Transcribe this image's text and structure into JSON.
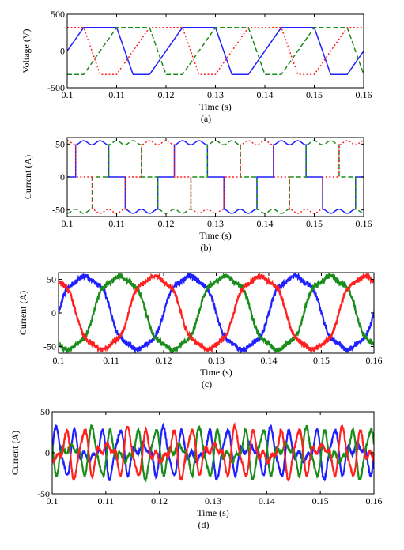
{
  "chart_data": [
    {
      "type": "line",
      "panel_label": "(a)",
      "xlabel": "Time (s)",
      "ylabel": "Voltage (V)",
      "xlim": [
        0.1,
        0.16
      ],
      "ylim": [
        -500,
        500
      ],
      "xticks": [
        "0.1",
        "0.11",
        "0.12",
        "0.13",
        "0.14",
        "0.15",
        "0.16"
      ],
      "yticks": [
        "-500",
        "0",
        "500"
      ],
      "ytick_values": [
        -500,
        0,
        500
      ],
      "waveform": "trapezoidal three-phase voltage",
      "amplitude": 320,
      "frequency_hz": 50,
      "series": [
        {
          "color": "#1f1fff",
          "dash": "solid",
          "phase_deg": 0
        },
        {
          "color": "#1a8c1a",
          "dash": "dash",
          "phase_deg": -120
        },
        {
          "color": "#ff2020",
          "dash": "dot",
          "phase_deg": 120
        }
      ]
    },
    {
      "type": "line",
      "panel_label": "(b)",
      "xlabel": "Time (s)",
      "ylabel": "Current (A)",
      "xlim": [
        0.1,
        0.16
      ],
      "ylim": [
        -60,
        60
      ],
      "xticks": [
        "0.1",
        "0.11",
        "0.12",
        "0.13",
        "0.14",
        "0.15",
        "0.16"
      ],
      "yticks": [
        "-50",
        "0",
        "50"
      ],
      "ytick_values": [
        -50,
        0,
        50
      ],
      "waveform": "quasi-square 120-degree conduction current",
      "amplitude": 52,
      "frequency_hz": 50,
      "series": [
        {
          "color": "#1f1fff",
          "dash": "solid",
          "phase_deg": 0
        },
        {
          "color": "#1a8c1a",
          "dash": "dash",
          "phase_deg": -120
        },
        {
          "color": "#ff2020",
          "dash": "dot",
          "phase_deg": 120
        }
      ]
    },
    {
      "type": "line",
      "panel_label": "(c)",
      "xlabel": "Time (s)",
      "ylabel": "Current (A)",
      "xlim": [
        0.1,
        0.16
      ],
      "ylim": [
        -60,
        60
      ],
      "xticks": [
        "0.1",
        "0.11",
        "0.12",
        "0.13",
        "0.14",
        "0.15",
        "0.16"
      ],
      "yticks": [
        "-50",
        "0",
        "50"
      ],
      "ytick_values": [
        -50,
        0,
        50
      ],
      "waveform": "noisy quasi-sinusoidal three-phase current",
      "amplitude": 60,
      "frequency_hz": 50,
      "series": [
        {
          "color": "#1f1fff",
          "dash": "solid",
          "phase_deg": 0
        },
        {
          "color": "#1a8c1a",
          "dash": "solid",
          "phase_deg": -120
        },
        {
          "color": "#ff2020",
          "dash": "solid",
          "phase_deg": 120
        }
      ]
    },
    {
      "type": "line",
      "panel_label": "(d)",
      "xlabel": "Time (s)",
      "ylabel": "Current (A)",
      "xlim": [
        0.1,
        0.16
      ],
      "ylim": [
        -50,
        50
      ],
      "xticks": [
        "0.1",
        "0.11",
        "0.12",
        "0.13",
        "0.14",
        "0.15",
        "0.16"
      ],
      "yticks": [
        "-50",
        "0",
        "50"
      ],
      "ytick_values": [
        -50,
        0,
        50
      ],
      "waveform": "harmonic compensation current",
      "amplitude": 30,
      "frequency_hz": 50,
      "series": [
        {
          "color": "#1f1fff",
          "dash": "solid",
          "phase_deg": 0
        },
        {
          "color": "#1a8c1a",
          "dash": "solid",
          "phase_deg": -120
        },
        {
          "color": "#ff2020",
          "dash": "solid",
          "phase_deg": 120
        }
      ]
    }
  ]
}
